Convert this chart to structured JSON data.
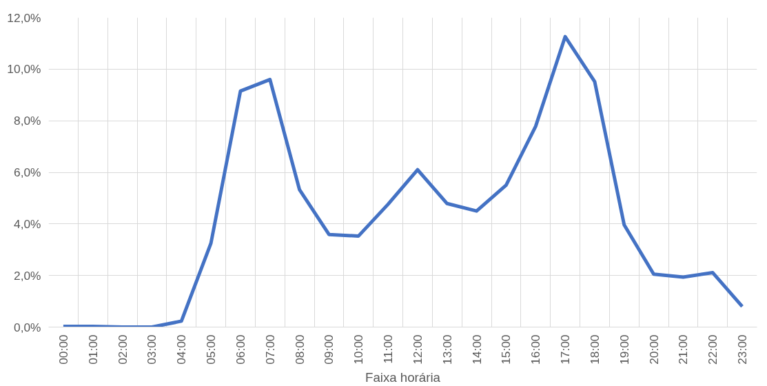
{
  "chart_data": {
    "type": "line",
    "xlabel": "Faixa horária",
    "categories": [
      "00:00",
      "01:00",
      "02:00",
      "03:00",
      "04:00",
      "05:00",
      "06:00",
      "07:00",
      "08:00",
      "09:00",
      "10:00",
      "11:00",
      "12:00",
      "13:00",
      "14:00",
      "15:00",
      "16:00",
      "17:00",
      "18:00",
      "19:00",
      "20:00",
      "21:00",
      "22:00",
      "23:00"
    ],
    "series": [
      {
        "color": "#4472c4",
        "values": [
          0.03,
          0.03,
          0.0,
          0.0,
          0.23,
          3.25,
          9.15,
          9.6,
          5.33,
          3.59,
          3.53,
          4.76,
          6.1,
          4.79,
          4.5,
          5.5,
          7.78,
          11.26,
          9.52,
          3.96,
          2.05,
          1.94,
          2.11,
          0.8
        ]
      }
    ],
    "ylim": [
      0,
      12
    ],
    "yticks": [
      {
        "value": 0,
        "label": "0,0%"
      },
      {
        "value": 2,
        "label": "2,0%"
      },
      {
        "value": 4,
        "label": "4,0%"
      },
      {
        "value": 6,
        "label": "6,0%"
      },
      {
        "value": 8,
        "label": "8,0%"
      },
      {
        "value": 10,
        "label": "10,0%"
      },
      {
        "value": 12,
        "label": "12,0%"
      }
    ],
    "grid": true,
    "marker": "none",
    "line_style": "solid"
  }
}
